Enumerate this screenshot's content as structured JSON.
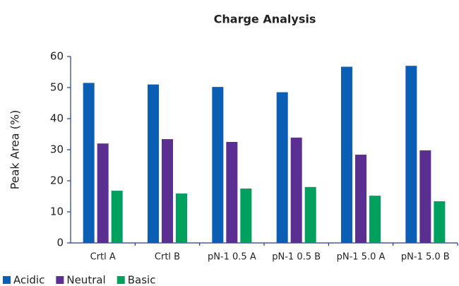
{
  "chart_data": {
    "type": "bar",
    "title": "Charge Analysis",
    "y_label": "Peak Area (%)",
    "categories": [
      "Crtl A",
      "Crtl B",
      "pN-1 0.5 A",
      "pN-1 0.5 B",
      "pN-1 5.0 A",
      "pN-1 5.0 B"
    ],
    "series": [
      {
        "name": "Acidic",
        "color": "#0a5fb4",
        "values": [
          51.5,
          51,
          50.2,
          48.5,
          56.7,
          57
        ]
      },
      {
        "name": "Neutral",
        "color": "#5b2e91",
        "values": [
          32,
          33.4,
          32.5,
          33.9,
          28.4,
          29.8
        ]
      },
      {
        "name": "Basic",
        "color": "#00a05f",
        "values": [
          16.8,
          15.9,
          17.5,
          18,
          15.2,
          13.4
        ]
      }
    ],
    "ylim": [
      0,
      60
    ],
    "yticks": [
      0,
      10,
      20,
      30,
      40,
      50,
      60
    ],
    "grid": false,
    "legend": "bottom-left"
  }
}
